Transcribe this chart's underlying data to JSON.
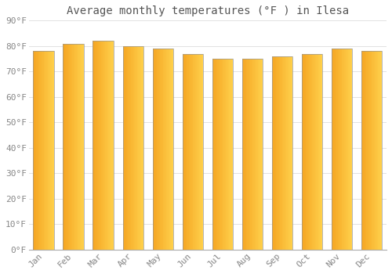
{
  "title": "Average monthly temperatures (°F ) in Ilesa",
  "months": [
    "Jan",
    "Feb",
    "Mar",
    "Apr",
    "May",
    "Jun",
    "Jul",
    "Aug",
    "Sep",
    "Oct",
    "Nov",
    "Dec"
  ],
  "values": [
    78,
    81,
    82,
    80,
    79,
    77,
    75,
    75,
    76,
    77,
    79,
    78
  ],
  "bar_color_left": "#F5A623",
  "bar_color_right": "#FFD04B",
  "bar_edge_color": "#555555",
  "background_color": "#FFFFFF",
  "plot_bg_color": "#FFFFFF",
  "grid_color": "#DDDDDD",
  "ylim": [
    0,
    90
  ],
  "yticks": [
    0,
    10,
    20,
    30,
    40,
    50,
    60,
    70,
    80,
    90
  ],
  "ytick_labels": [
    "0°F",
    "10°F",
    "20°F",
    "30°F",
    "40°F",
    "50°F",
    "60°F",
    "70°F",
    "80°F",
    "90°F"
  ],
  "title_fontsize": 10,
  "tick_fontsize": 8,
  "font_color": "#888888",
  "title_color": "#555555",
  "bar_width": 0.7,
  "num_gradient_steps": 20
}
